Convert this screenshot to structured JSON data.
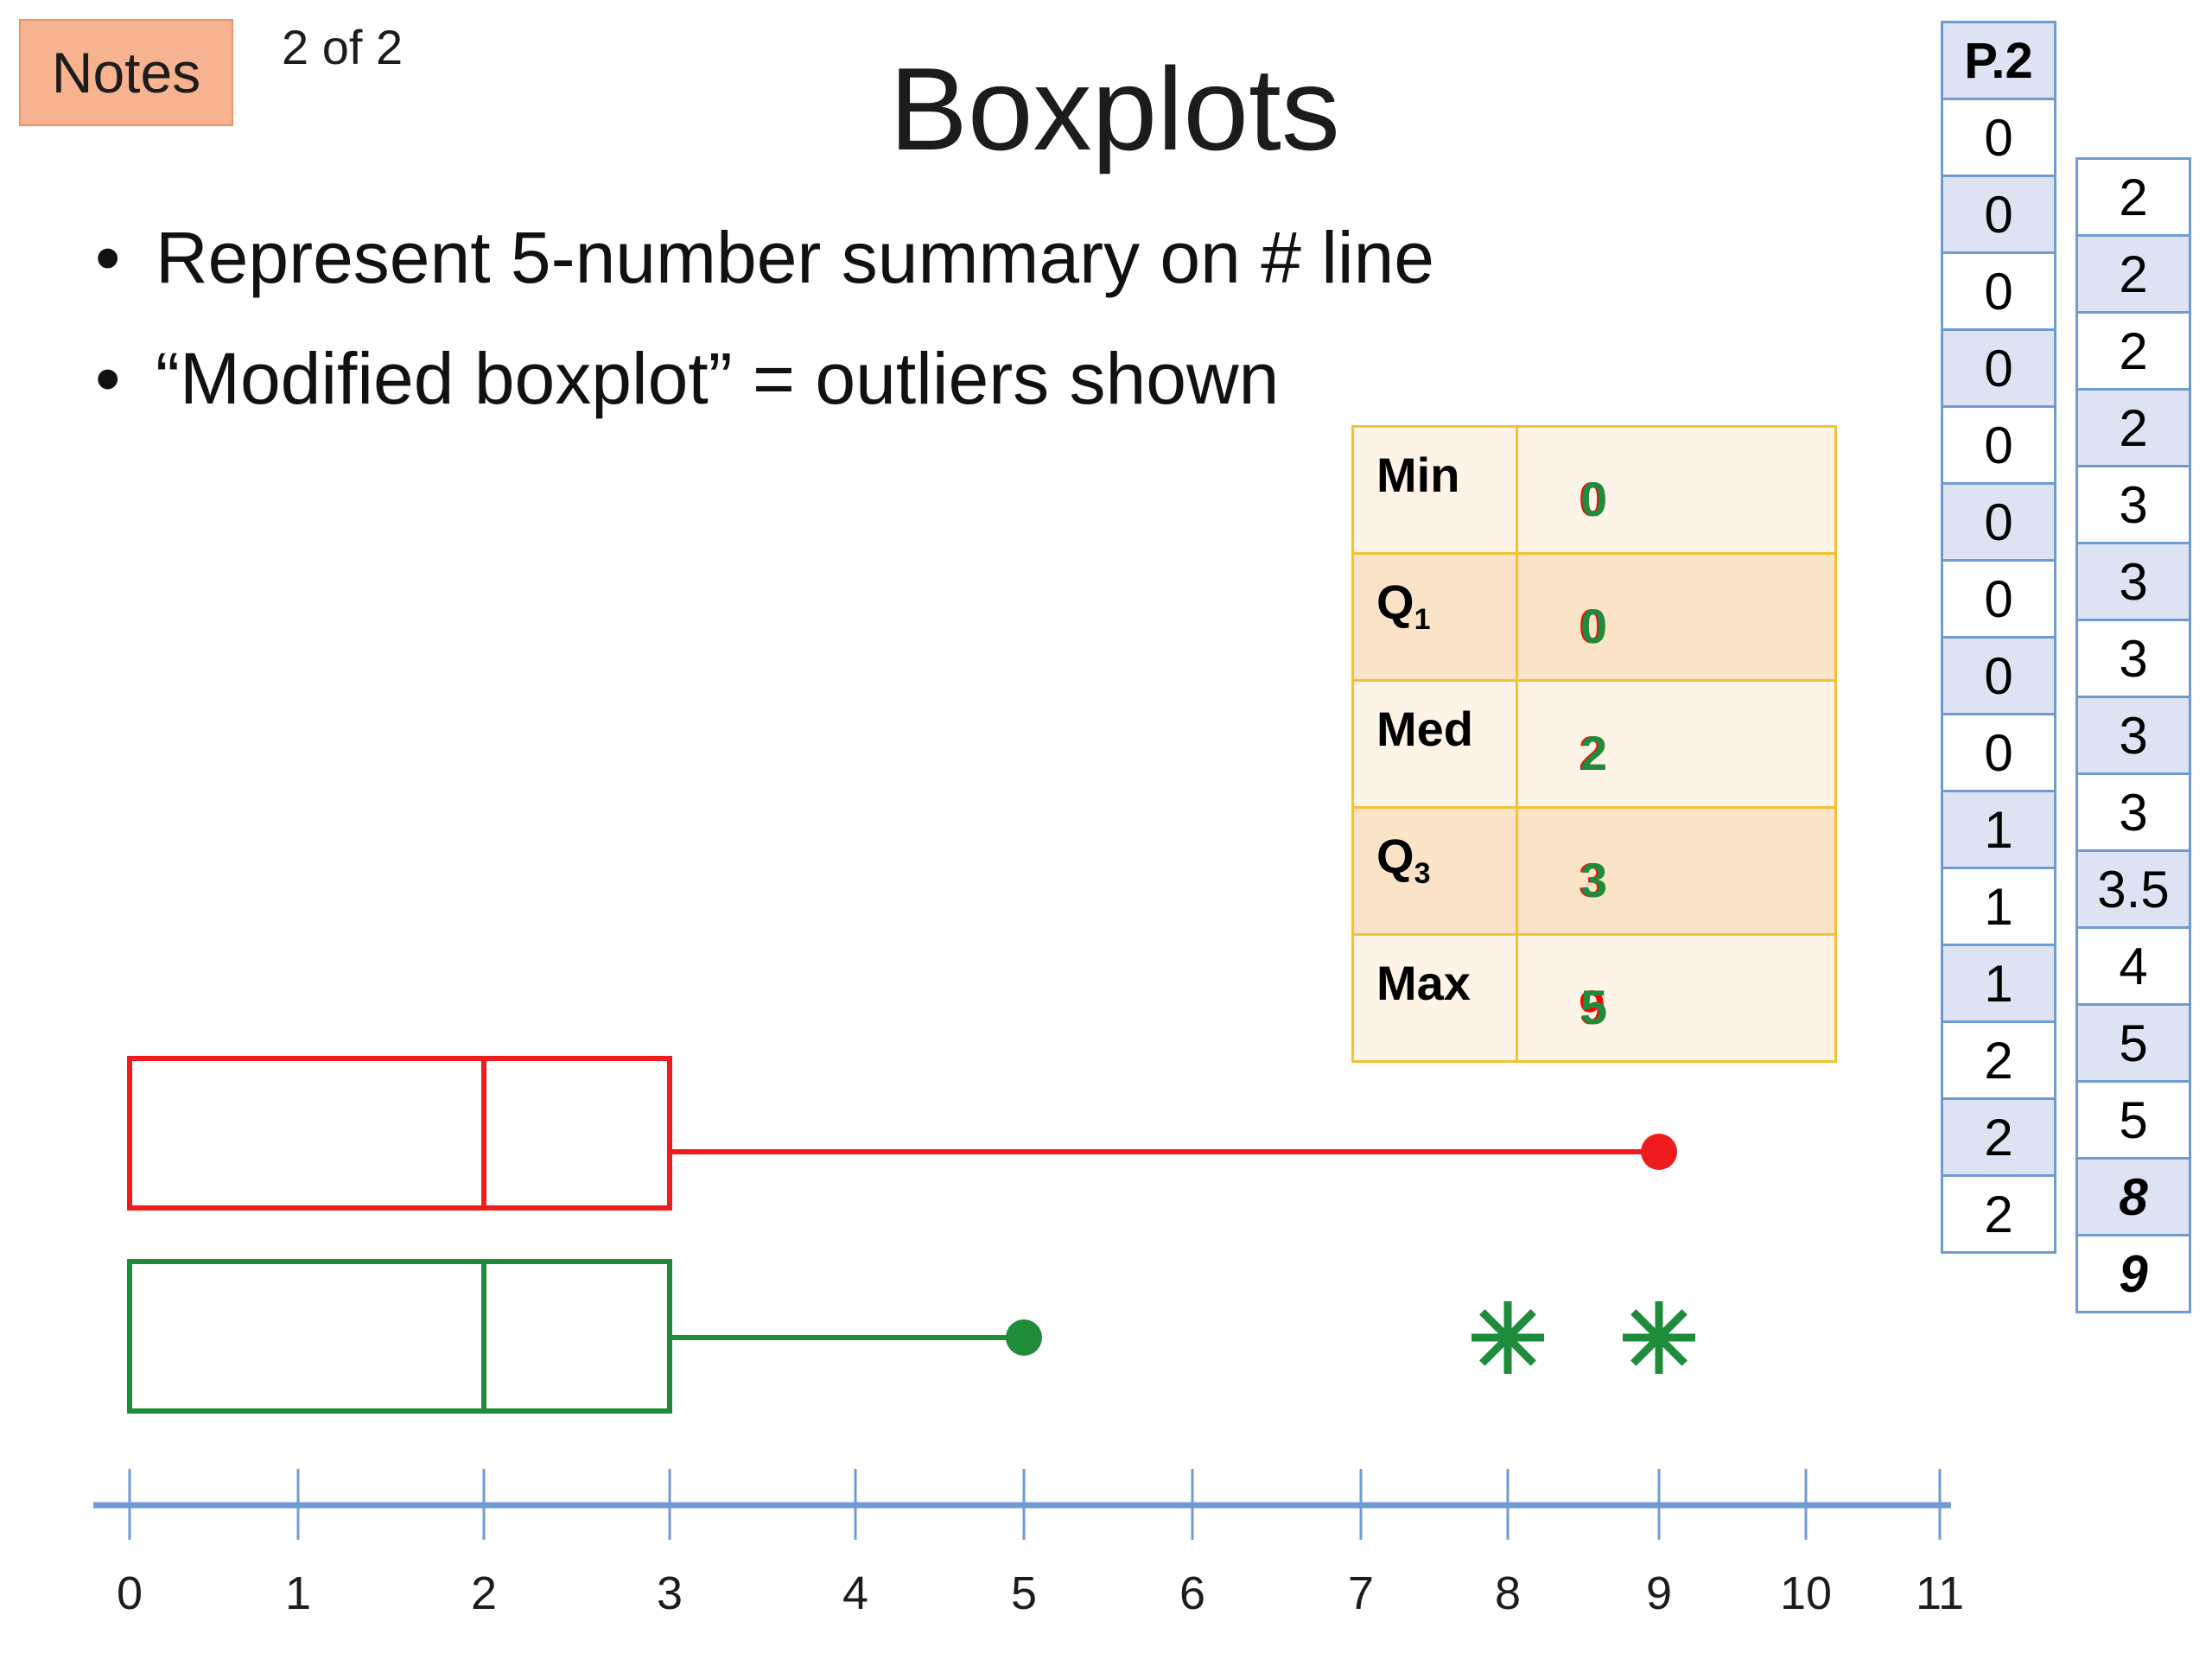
{
  "header": {
    "notes_label": "Notes",
    "page_counter": "2 of 2",
    "title": "Boxplots"
  },
  "bullets": [
    "Represent 5-number summary on # line",
    "“Modified boxplot” = outliers shown"
  ],
  "summary_table": {
    "rows": [
      {
        "label": "Min",
        "red": "0",
        "green": "0"
      },
      {
        "label": "Q",
        "sub": "1",
        "red": "0",
        "green": "0"
      },
      {
        "label": "Med",
        "red": "2",
        "green": "2"
      },
      {
        "label": "Q",
        "sub": "3",
        "red": "3",
        "green": "3"
      },
      {
        "label": "Max",
        "red": "9",
        "green": "5"
      }
    ]
  },
  "data_column_p2": {
    "header": "P.2",
    "values": [
      "0",
      "0",
      "0",
      "0",
      "0",
      "0",
      "0",
      "0",
      "0",
      "1",
      "1",
      "1",
      "2",
      "2",
      "2"
    ]
  },
  "data_column_second": {
    "values": [
      "2",
      "2",
      "2",
      "2",
      "3",
      "3",
      "3",
      "3",
      "3",
      "3.5",
      "4",
      "5",
      "5",
      "8",
      "9"
    ],
    "emphasized": [
      "8",
      "9"
    ]
  },
  "colors": {
    "red_plot": "#ee1c1c",
    "green_plot": "#1e8c3a",
    "axis": "#6f9bd4",
    "table_border": "#f2c233",
    "column_border": "#6f9bd4"
  },
  "chart_data": {
    "type": "boxplot",
    "axis": {
      "min": 0,
      "max": 11,
      "ticks": [
        "0",
        "1",
        "2",
        "3",
        "4",
        "5",
        "6",
        "7",
        "8",
        "9",
        "10",
        "11"
      ]
    },
    "series": [
      {
        "color": "red",
        "min": 0,
        "q1": 0,
        "median": 2,
        "q3": 3,
        "max": 9,
        "outliers": []
      },
      {
        "color": "green",
        "min": 0,
        "q1": 0,
        "median": 2,
        "q3": 3,
        "max": 5,
        "outliers": [
          8,
          9
        ]
      }
    ]
  }
}
